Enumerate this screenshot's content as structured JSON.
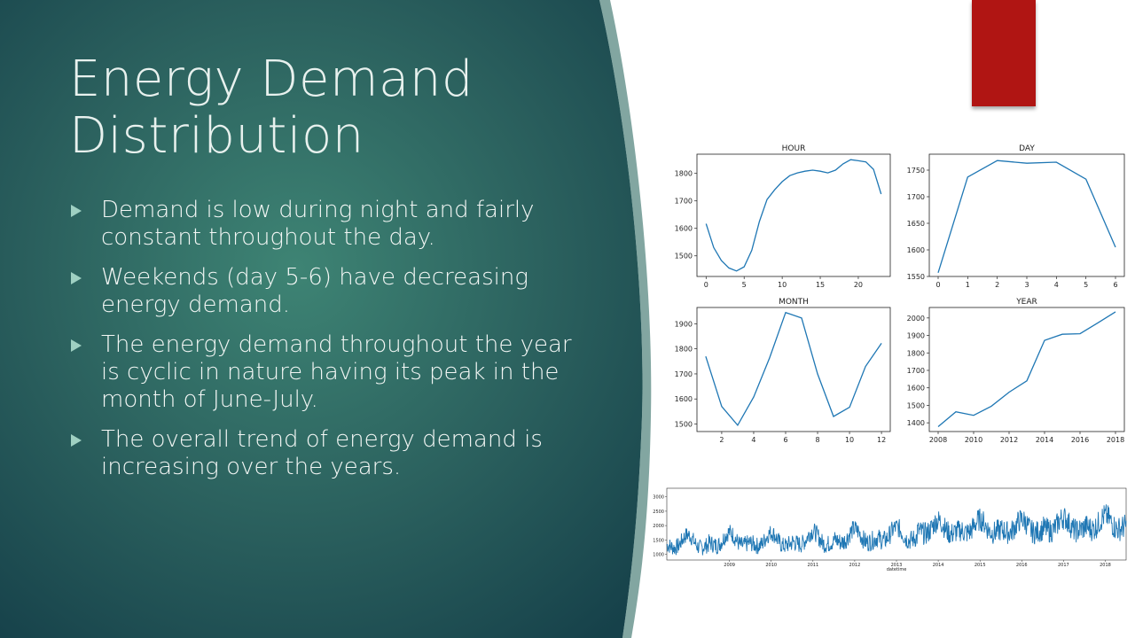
{
  "slide": {
    "title_lines": [
      "Energy Demand",
      "Distribution"
    ],
    "bullets": [
      {
        "lines": [
          "Demand is low during night and fairly",
          "constant throughout the day."
        ]
      },
      {
        "lines": [
          "Weekends (day 5-6) have decreasing",
          "energy demand."
        ]
      },
      {
        "lines": [
          "The energy demand throughout the year",
          "is cyclic in nature having its peak in the",
          "month of June-July."
        ]
      },
      {
        "lines": [
          "The overall trend of energy demand is",
          "increasing over the years."
        ]
      }
    ],
    "colors": {
      "accent_red": "#b01513",
      "bg_dark": "#16414a",
      "bg_mid": "#357a6c",
      "line_blue": "#1f77b4"
    }
  },
  "chart_data": [
    {
      "type": "line",
      "title": "HOUR",
      "x": [
        0,
        1,
        2,
        3,
        4,
        5,
        6,
        7,
        8,
        9,
        10,
        11,
        12,
        13,
        14,
        15,
        16,
        17,
        18,
        19,
        20,
        21,
        22,
        23
      ],
      "y": [
        1617,
        1530,
        1483,
        1456,
        1445,
        1460,
        1520,
        1625,
        1705,
        1740,
        1770,
        1792,
        1802,
        1808,
        1812,
        1808,
        1802,
        1812,
        1835,
        1850,
        1846,
        1842,
        1815,
        1725
      ],
      "xlim": [
        -1.2,
        24.2
      ],
      "ylim": [
        1425,
        1870
      ],
      "xticks": [
        0,
        5,
        10,
        15,
        20
      ],
      "yticks": [
        1500,
        1600,
        1700,
        1800
      ]
    },
    {
      "type": "line",
      "title": "DAY",
      "x": [
        0,
        1,
        2,
        3,
        4,
        5,
        6
      ],
      "y": [
        1557,
        1737,
        1768,
        1763,
        1765,
        1733,
        1605
      ],
      "xlim": [
        -0.3,
        6.3
      ],
      "ylim": [
        1550,
        1780
      ],
      "xticks": [
        0,
        1,
        2,
        3,
        4,
        5,
        6
      ],
      "yticks": [
        1550,
        1600,
        1650,
        1700,
        1750
      ]
    },
    {
      "type": "line",
      "title": "MONTH",
      "x": [
        1,
        2,
        3,
        4,
        5,
        6,
        7,
        8,
        9,
        10,
        11,
        12
      ],
      "y": [
        1770,
        1570,
        1495,
        1608,
        1765,
        1945,
        1923,
        1700,
        1530,
        1567,
        1730,
        1822
      ],
      "xlim": [
        0.45,
        12.55
      ],
      "ylim": [
        1470,
        1965
      ],
      "xticks": [
        2,
        4,
        6,
        8,
        10,
        12
      ],
      "yticks": [
        1500,
        1600,
        1700,
        1800,
        1900
      ]
    },
    {
      "type": "line",
      "title": "YEAR",
      "x": [
        2008,
        2009,
        2010,
        2011,
        2012,
        2013,
        2014,
        2015,
        2016,
        2017,
        2018
      ],
      "y": [
        1378,
        1463,
        1443,
        1495,
        1575,
        1640,
        1872,
        1907,
        1910,
        1972,
        2035
      ],
      "xlim": [
        2007.5,
        2018.5
      ],
      "ylim": [
        1350,
        2060
      ],
      "xticks": [
        2008,
        2010,
        2012,
        2014,
        2016,
        2018
      ],
      "yticks": [
        1400,
        1500,
        1600,
        1700,
        1800,
        1900,
        2000
      ]
    },
    {
      "type": "line",
      "title": "",
      "xlabel": "datetime",
      "x_range": [
        2008.0,
        2019.0
      ],
      "ylim": [
        800,
        3300
      ],
      "xticks": [
        2009,
        2010,
        2011,
        2012,
        2013,
        2014,
        2015,
        2016,
        2017,
        2018
      ],
      "yticks": [
        1000,
        1500,
        2000,
        2500,
        3000
      ],
      "series": [
        {
          "yearly_mean": [
            1380,
            1460,
            1445,
            1495,
            1575,
            1640,
            1870,
            1905,
            1910,
            1970,
            2035
          ]
        }
      ]
    }
  ]
}
